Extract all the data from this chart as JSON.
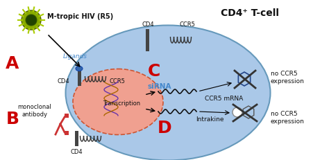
{
  "title": "CD4⁺ T-cell",
  "hiv_label": "M-tropic HIV (R5)",
  "section_A": "A",
  "section_B": "B",
  "section_C": "C",
  "section_D": "D",
  "ligands_label": "Ligands",
  "cd4_label": "CD4",
  "ccr5_label": "CCR5",
  "sirna_label": "siRNA",
  "ccr5_mrna_label": "CCR5 mRNA",
  "transcription_label": "Transcription",
  "intrakine_label": "Intrakine",
  "no_ccr5_top": "no CCR5\nexpression",
  "no_ccr5_bot": "no CCR5\nexpression",
  "monoclonal_label": "monoclonal\nantibody",
  "bg_color": "#ffffff",
  "cell_color": "#aac8e8",
  "nucleus_color": "#f0a090",
  "red_label_color": "#cc0000",
  "blue_text_color": "#4488cc",
  "dark_text": "#111111"
}
